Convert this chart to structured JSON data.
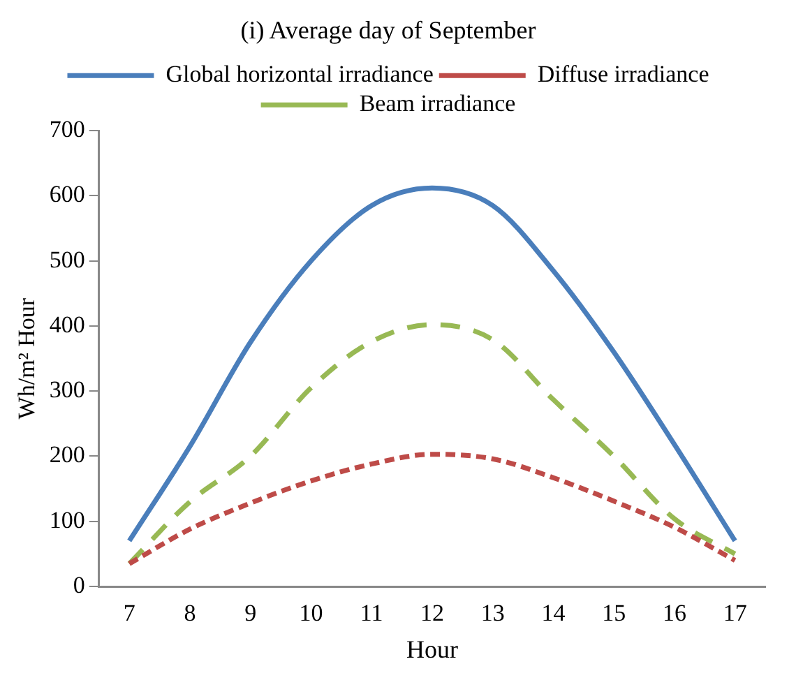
{
  "chart_data": {
    "type": "line",
    "title": "(i) Average day of September",
    "xlabel": "Hour",
    "ylabel": "Wh/m² Hour",
    "categories": [
      "7",
      "8",
      "9",
      "10",
      "11",
      "12",
      "13",
      "14",
      "15",
      "16",
      "17"
    ],
    "series": [
      {
        "name": "Global horizontal irradiance",
        "color": "#4a7ebb",
        "line_style": "solid",
        "values": [
          70,
          215,
          375,
          500,
          585,
          612,
          585,
          485,
          360,
          218,
          70
        ]
      },
      {
        "name": "Diffuse irradiance",
        "color": "#be4b48",
        "line_style": "dotted",
        "values": [
          35,
          88,
          128,
          162,
          188,
          203,
          196,
          167,
          131,
          91,
          40
        ]
      },
      {
        "name": "Beam irradiance",
        "color": "#98b954",
        "line_style": "dashed",
        "values": [
          35,
          130,
          200,
          305,
          376,
          402,
          379,
          287,
          200,
          104,
          50
        ]
      }
    ],
    "ylim": [
      0,
      700
    ],
    "yticks": [
      0,
      100,
      200,
      300,
      400,
      500,
      600,
      700
    ],
    "grid": false,
    "legend": "top",
    "marker": "none"
  }
}
